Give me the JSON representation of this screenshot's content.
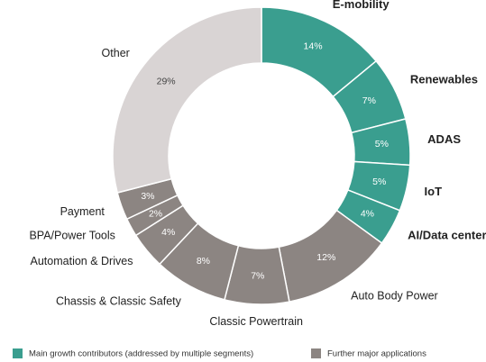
{
  "chart_data": {
    "type": "pie",
    "categories": [
      "E-mobility",
      "Renewables",
      "ADAS",
      "IoT",
      "AI/Data center",
      "Auto Body Power",
      "Classic Powertrain",
      "Chassis & Classic Safety",
      "Automation & Drives",
      "BPA/Power Tools",
      "Payment",
      "Other"
    ],
    "values": [
      14,
      7,
      5,
      5,
      4,
      12,
      7,
      8,
      4,
      2,
      3,
      29
    ],
    "value_labels": [
      "14%",
      "7%",
      "5%",
      "5%",
      "4%",
      "12%",
      "7%",
      "8%",
      "4%",
      "2%",
      "3%",
      "29%"
    ],
    "colors": [
      "#3a9e8f",
      "#3a9e8f",
      "#3a9e8f",
      "#3a9e8f",
      "#3a9e8f",
      "#8c8582",
      "#8c8582",
      "#8c8582",
      "#8c8582",
      "#8c8582",
      "#8c8582",
      "#d9d4d4"
    ],
    "legend": [
      {
        "name": "Main growth contributors (addressed by multiple segments)",
        "color": "#3a9e8f"
      },
      {
        "name": "Further major applications",
        "color": "#8c8582"
      }
    ]
  }
}
